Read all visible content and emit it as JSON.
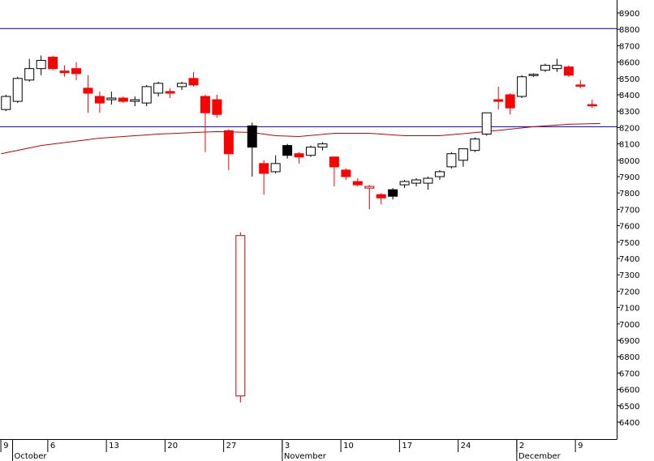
{
  "chart_data": {
    "type": "candlestick",
    "title": "",
    "xlabel": "",
    "ylabel": "",
    "ylim": [
      6300,
      8960
    ],
    "y_ticks": [
      6400,
      6500,
      6600,
      6700,
      6800,
      6900,
      7000,
      7100,
      7200,
      7300,
      7400,
      7500,
      7600,
      7700,
      7800,
      7900,
      8000,
      8100,
      8200,
      8300,
      8400,
      8500,
      8600,
      8700,
      8800,
      8900
    ],
    "x_day_labels": [
      {
        "i": 0,
        "label": "9"
      },
      {
        "i": 4,
        "label": "6"
      },
      {
        "i": 9,
        "label": "13"
      },
      {
        "i": 14,
        "label": "20"
      },
      {
        "i": 19,
        "label": "27"
      },
      {
        "i": 24,
        "label": "3"
      },
      {
        "i": 29,
        "label": "10"
      },
      {
        "i": 34,
        "label": "17"
      },
      {
        "i": 39,
        "label": "24"
      },
      {
        "i": 44,
        "label": "2"
      },
      {
        "i": 49,
        "label": "9"
      }
    ],
    "x_month_labels": [
      {
        "i": 1,
        "label": "October"
      },
      {
        "i": 24,
        "label": "November"
      },
      {
        "i": 44,
        "label": "December"
      }
    ],
    "horizontal_lines": [
      {
        "value": 8805,
        "color": "#00007f"
      },
      {
        "value": 8205,
        "color": "#0000cc"
      }
    ],
    "moving_average": {
      "color": "#cc0000",
      "points": [
        [
          -0.4,
          8040
        ],
        [
          3,
          8090
        ],
        [
          8,
          8135
        ],
        [
          13,
          8160
        ],
        [
          18,
          8175
        ],
        [
          21,
          8170
        ],
        [
          23,
          8150
        ],
        [
          25,
          8145
        ],
        [
          28,
          8165
        ],
        [
          31,
          8165
        ],
        [
          34,
          8150
        ],
        [
          37,
          8150
        ],
        [
          41,
          8175
        ],
        [
          45,
          8205
        ],
        [
          48,
          8220
        ],
        [
          50.7,
          8225
        ]
      ]
    },
    "colors": {
      "up": "#ffffff",
      "down_red": "#ff0000",
      "down_black": "#000000",
      "outline": "#000000",
      "red_outline": "#cc0000"
    },
    "candles": [
      {
        "i": 0,
        "o": 8310,
        "h": 8400,
        "l": 8300,
        "c": 8390,
        "color": "up"
      },
      {
        "i": 1,
        "o": 8360,
        "h": 8510,
        "l": 8350,
        "c": 8500,
        "color": "up"
      },
      {
        "i": 2,
        "o": 8490,
        "h": 8620,
        "l": 8480,
        "c": 8560,
        "color": "up"
      },
      {
        "i": 3,
        "o": 8560,
        "h": 8640,
        "l": 8520,
        "c": 8610,
        "color": "up"
      },
      {
        "i": 4,
        "o": 8630,
        "h": 8640,
        "l": 8550,
        "c": 8560,
        "color": "red"
      },
      {
        "i": 5,
        "o": 8545,
        "h": 8580,
        "l": 8510,
        "c": 8535,
        "color": "red"
      },
      {
        "i": 6,
        "o": 8560,
        "h": 8600,
        "l": 8490,
        "c": 8530,
        "color": "red"
      },
      {
        "i": 7,
        "o": 8440,
        "h": 8520,
        "l": 8290,
        "c": 8410,
        "color": "red"
      },
      {
        "i": 8,
        "o": 8390,
        "h": 8420,
        "l": 8290,
        "c": 8350,
        "color": "red"
      },
      {
        "i": 9,
        "o": 8370,
        "h": 8420,
        "l": 8340,
        "c": 8380,
        "color": "up"
      },
      {
        "i": 10,
        "o": 8380,
        "h": 8390,
        "l": 8350,
        "c": 8360,
        "color": "red"
      },
      {
        "i": 11,
        "o": 8360,
        "h": 8390,
        "l": 8330,
        "c": 8370,
        "color": "up"
      },
      {
        "i": 12,
        "o": 8350,
        "h": 8460,
        "l": 8330,
        "c": 8450,
        "color": "up"
      },
      {
        "i": 13,
        "o": 8410,
        "h": 8480,
        "l": 8390,
        "c": 8470,
        "color": "up"
      },
      {
        "i": 14,
        "o": 8420,
        "h": 8440,
        "l": 8380,
        "c": 8410,
        "color": "red"
      },
      {
        "i": 15,
        "o": 8450,
        "h": 8480,
        "l": 8430,
        "c": 8470,
        "color": "up"
      },
      {
        "i": 16,
        "o": 8500,
        "h": 8540,
        "l": 8450,
        "c": 8460,
        "color": "red"
      },
      {
        "i": 17,
        "o": 8390,
        "h": 8400,
        "l": 8050,
        "c": 8290,
        "color": "red"
      },
      {
        "i": 18,
        "o": 8370,
        "h": 8400,
        "l": 8260,
        "c": 8280,
        "color": "red"
      },
      {
        "i": 19,
        "o": 8180,
        "h": 8190,
        "l": 7940,
        "c": 8040,
        "color": "red"
      },
      {
        "i": 20,
        "o": 7540,
        "h": 7560,
        "l": 6520,
        "c": 6560,
        "color": "red_outline"
      },
      {
        "i": 21,
        "o": 8210,
        "h": 8230,
        "l": 7900,
        "c": 8080,
        "color": "black"
      },
      {
        "i": 22,
        "o": 7980,
        "h": 8000,
        "l": 7790,
        "c": 7920,
        "color": "red"
      },
      {
        "i": 23,
        "o": 7930,
        "h": 8030,
        "l": 7920,
        "c": 7980,
        "color": "up"
      },
      {
        "i": 24,
        "o": 8090,
        "h": 8100,
        "l": 8010,
        "c": 8030,
        "color": "black"
      },
      {
        "i": 25,
        "o": 8040,
        "h": 8050,
        "l": 7980,
        "c": 8020,
        "color": "red"
      },
      {
        "i": 26,
        "o": 8030,
        "h": 8090,
        "l": 8020,
        "c": 8080,
        "color": "up"
      },
      {
        "i": 27,
        "o": 8080,
        "h": 8110,
        "l": 8060,
        "c": 8100,
        "color": "up"
      },
      {
        "i": 28,
        "o": 8020,
        "h": 8020,
        "l": 7840,
        "c": 7960,
        "color": "red"
      },
      {
        "i": 29,
        "o": 7940,
        "h": 7950,
        "l": 7880,
        "c": 7900,
        "color": "red"
      },
      {
        "i": 30,
        "o": 7870,
        "h": 7890,
        "l": 7840,
        "c": 7850,
        "color": "red"
      },
      {
        "i": 31,
        "o": 7830,
        "h": 7850,
        "l": 7700,
        "c": 7840,
        "color": "red_outline"
      },
      {
        "i": 32,
        "o": 7790,
        "h": 7800,
        "l": 7730,
        "c": 7770,
        "color": "red"
      },
      {
        "i": 33,
        "o": 7780,
        "h": 7830,
        "l": 7760,
        "c": 7820,
        "color": "black"
      },
      {
        "i": 34,
        "o": 7850,
        "h": 7880,
        "l": 7830,
        "c": 7870,
        "color": "up"
      },
      {
        "i": 35,
        "o": 7860,
        "h": 7890,
        "l": 7840,
        "c": 7880,
        "color": "up"
      },
      {
        "i": 36,
        "o": 7860,
        "h": 7900,
        "l": 7820,
        "c": 7890,
        "color": "up"
      },
      {
        "i": 37,
        "o": 7900,
        "h": 7940,
        "l": 7880,
        "c": 7930,
        "color": "up"
      },
      {
        "i": 38,
        "o": 7960,
        "h": 8050,
        "l": 7950,
        "c": 8040,
        "color": "up"
      },
      {
        "i": 39,
        "o": 8000,
        "h": 8070,
        "l": 7960,
        "c": 8070,
        "color": "up"
      },
      {
        "i": 40,
        "o": 8060,
        "h": 8140,
        "l": 8050,
        "c": 8130,
        "color": "up"
      },
      {
        "i": 41,
        "o": 8160,
        "h": 8290,
        "l": 8150,
        "c": 8290,
        "color": "up"
      },
      {
        "i": 42,
        "o": 8360,
        "h": 8450,
        "l": 8310,
        "c": 8370,
        "color": "red"
      },
      {
        "i": 43,
        "o": 8400,
        "h": 8410,
        "l": 8280,
        "c": 8320,
        "color": "red"
      },
      {
        "i": 44,
        "o": 8390,
        "h": 8520,
        "l": 8380,
        "c": 8510,
        "color": "up"
      },
      {
        "i": 45,
        "o": 8520,
        "h": 8530,
        "l": 8510,
        "c": 8525,
        "color": "up"
      },
      {
        "i": 46,
        "o": 8550,
        "h": 8590,
        "l": 8540,
        "c": 8580,
        "color": "up"
      },
      {
        "i": 47,
        "o": 8560,
        "h": 8620,
        "l": 8540,
        "c": 8580,
        "color": "up"
      },
      {
        "i": 48,
        "o": 8570,
        "h": 8580,
        "l": 8510,
        "c": 8520,
        "color": "red"
      },
      {
        "i": 49,
        "o": 8460,
        "h": 8490,
        "l": 8440,
        "c": 8460,
        "color": "red"
      },
      {
        "i": 50,
        "o": 8340,
        "h": 8370,
        "l": 8320,
        "c": 8340,
        "color": "red"
      }
    ]
  }
}
